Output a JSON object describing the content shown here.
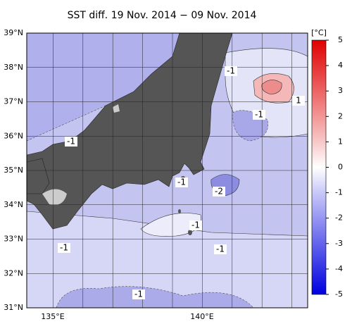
{
  "title": "SST diff. 19 Nov. 2014 − 09 Nov. 2014",
  "lat_labels": [
    "39°N",
    "38°N",
    "37°N",
    "36°N",
    "35°N",
    "34°N",
    "33°N",
    "32°N",
    "31°N"
  ],
  "lon_labels": [
    "135°E",
    "140°E"
  ],
  "colorbar": {
    "unit": "[°C]",
    "ticks": [
      5,
      4,
      3,
      2,
      1,
      0,
      -1,
      -2,
      -3,
      -4,
      -5
    ]
  },
  "contour_labels": [
    "-1",
    "1",
    "-1",
    "-1",
    "-1",
    "-2",
    "-1",
    "-1",
    "-1",
    "-1"
  ]
}
